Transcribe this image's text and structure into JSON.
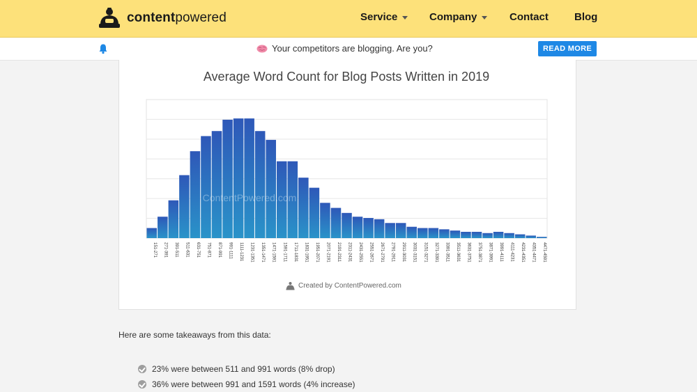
{
  "header": {
    "logo_bold": "content",
    "logo_light": "powered",
    "nav": [
      {
        "label": "Service",
        "dropdown": true
      },
      {
        "label": "Company",
        "dropdown": true
      },
      {
        "label": "Contact",
        "dropdown": false
      },
      {
        "label": "Blog",
        "dropdown": false
      }
    ]
  },
  "notification": {
    "text": "Your competitors are blogging. Are you?",
    "button": "READ MORE",
    "icon": "bell-icon"
  },
  "chart_data": {
    "type": "bar",
    "title": "Average Word Count for Blog Posts Written in 2019",
    "watermark": "ContentPowered.com",
    "credit": "Created by ContentPowered.com",
    "categories": [
      "151-271",
      "271-391",
      "391-511",
      "511-631",
      "631-751",
      "751-871",
      "871-991",
      "991-1111",
      "1111-1231",
      "1231-1351",
      "1351-1471",
      "1471-1591",
      "1591-1711",
      "1711-1831",
      "1831-1951",
      "1951-2071",
      "2071-2191",
      "2191-2311",
      "2311-2431",
      "2431-2551",
      "2551-2671",
      "2671-2791",
      "2791-2911",
      "2911-3031",
      "3031-3151",
      "3151-3271",
      "3271-3391",
      "3391-3511",
      "3511-3631",
      "3631-3751",
      "3751-3871",
      "3871-3991",
      "3991-4111",
      "4111-4231",
      "4231-4351",
      "4351-4471",
      "4471-4591"
    ],
    "values": [
      8,
      17,
      30,
      50,
      69,
      81,
      85,
      94,
      95,
      95,
      85,
      78,
      61,
      61,
      48,
      40,
      28,
      24,
      20,
      17,
      16,
      15,
      12,
      12,
      9,
      8,
      8,
      7,
      6,
      5,
      5,
      4,
      5,
      4,
      3,
      2,
      1
    ],
    "ylim": [
      0,
      110
    ],
    "grid": true
  },
  "content": {
    "intro": "Here are some takeaways from this data:",
    "bullets": [
      "23% were between 511 and 991 words (8% drop)",
      "36% were between 991 and 1591 words (4% increase)"
    ]
  },
  "colors": {
    "header_bg": "#fde17a",
    "accent": "#1e88e5",
    "bar_top": "#2e58b8",
    "bar_bottom": "#2a93c9"
  }
}
